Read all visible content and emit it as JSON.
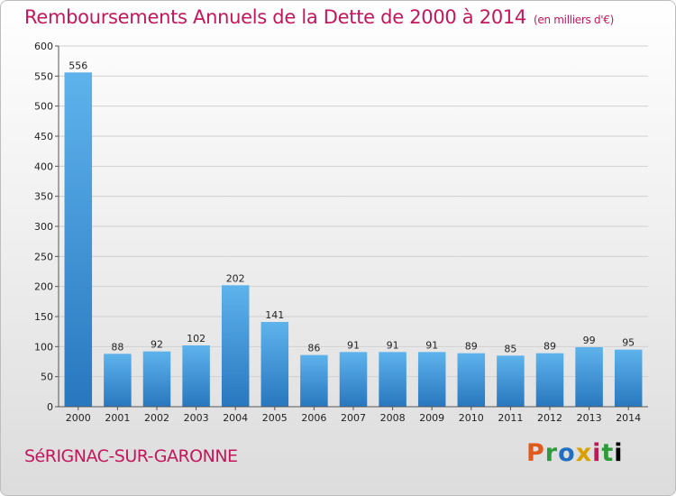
{
  "title": "Remboursements Annuels de la Dette de 2000 à 2014",
  "unit": "(en milliers d'€)",
  "city": "SéRIGNAC-SUR-GARONNE",
  "logo": [
    "P",
    "r",
    "o",
    "x",
    "i",
    "t",
    "i"
  ],
  "colors": {
    "title": "#c2185b",
    "bar_top": "#5eb3ec",
    "bar_bottom": "#2877bf"
  },
  "chart_data": {
    "type": "bar",
    "categories": [
      "2000",
      "2001",
      "2002",
      "2003",
      "2004",
      "2005",
      "2006",
      "2007",
      "2008",
      "2009",
      "2010",
      "2011",
      "2012",
      "2013",
      "2014"
    ],
    "values": [
      556,
      88,
      92,
      102,
      202,
      141,
      86,
      91,
      91,
      91,
      89,
      85,
      89,
      99,
      95
    ],
    "title": "Remboursements Annuels de la Dette de 2000 à 2014",
    "ylim": [
      0,
      600
    ],
    "yticks": [
      0,
      50,
      100,
      150,
      200,
      250,
      300,
      350,
      400,
      450,
      500,
      550,
      600
    ],
    "grid": true,
    "legend": "none"
  }
}
